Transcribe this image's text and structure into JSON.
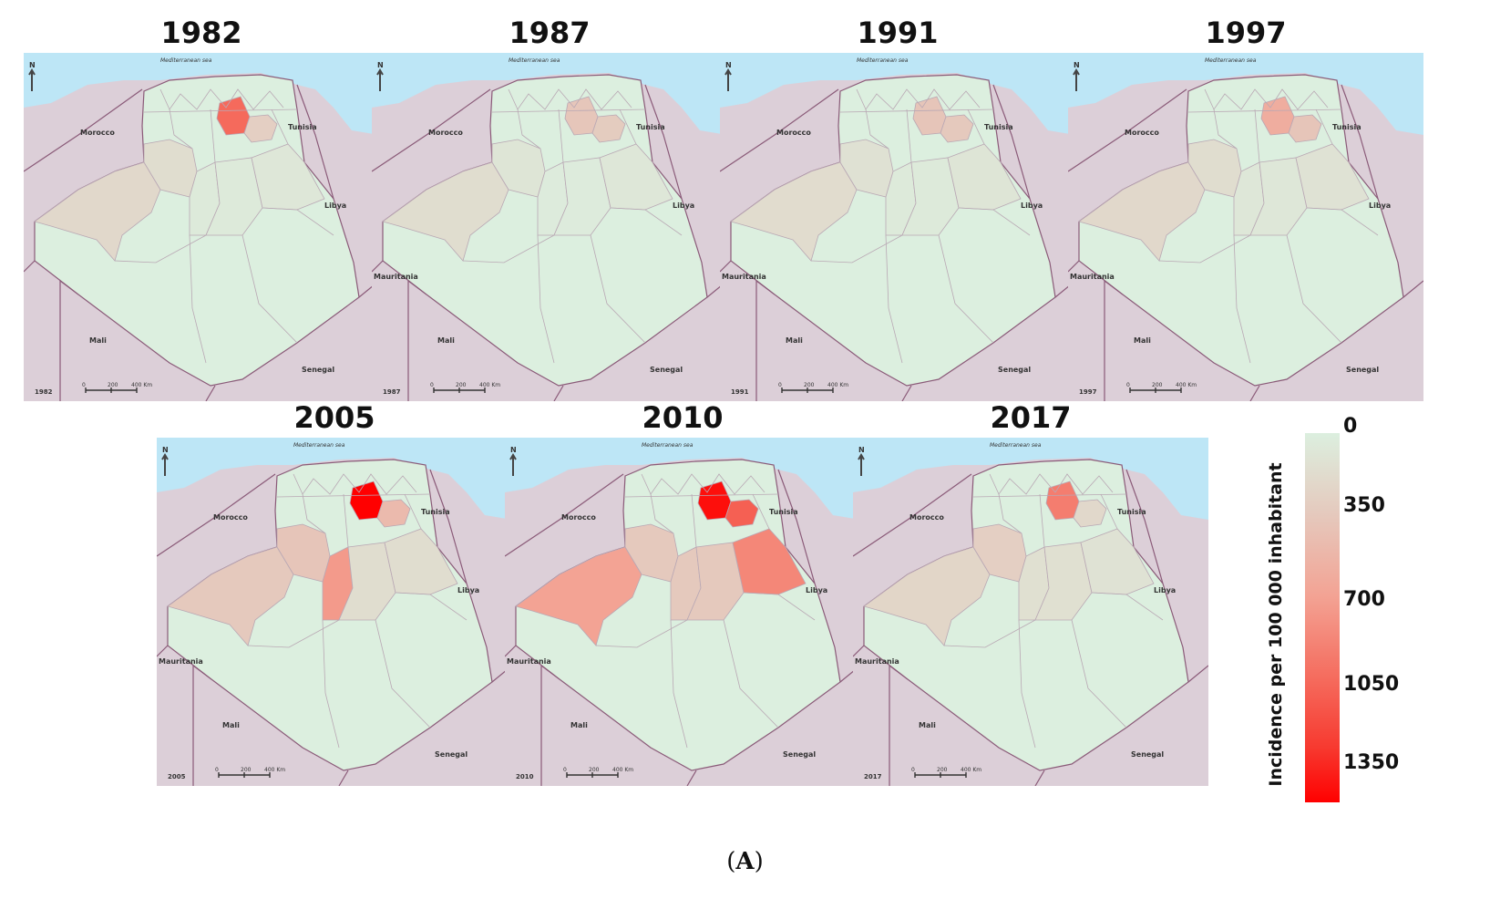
{
  "figure": {
    "caption_open": "(",
    "caption_letter": "A",
    "caption_close": ")"
  },
  "map_labels": {
    "sea": "Mediterranean sea",
    "north": "N",
    "morocco": "Morocco",
    "tunisia": "Tunisia",
    "libya": "Libya",
    "mauritania": "Mauritania",
    "mali": "Mali",
    "senegal": "Senegal",
    "scale_0": "0",
    "scale_200": "200",
    "scale_400": "400 Km"
  },
  "legend": {
    "title": "Incidence per 100 000 inhabitant",
    "ticks": [
      "0",
      "350",
      "700",
      "1050",
      "1350"
    ],
    "color_low": "#dcefdf",
    "color_high": "#ff0000"
  },
  "colors": {
    "sea": "#bde6f6",
    "neighbors": "#dccfd8",
    "base": "#dcefdf",
    "border": "#8a5a78"
  },
  "panels": [
    {
      "year": "1982",
      "incidence": {
        "biskra": 900,
        "batna": 250,
        "nw": 140,
        "adrar": 180,
        "eloued": 60,
        "ouargla": 40,
        "ghardaia": 40
      }
    },
    {
      "year": "1987",
      "incidence": {
        "biskra": 320,
        "batna": 280,
        "nw": 80,
        "adrar": 140,
        "eloued": 60,
        "ouargla": 30,
        "ghardaia": 30
      }
    },
    {
      "year": "1991",
      "incidence": {
        "biskra": 330,
        "batna": 300,
        "nw": 110,
        "adrar": 150,
        "eloued": 80,
        "ouargla": 40,
        "ghardaia": 40
      }
    },
    {
      "year": "1997",
      "incidence": {
        "biskra": 520,
        "batna": 330,
        "nw": 140,
        "adrar": 180,
        "eloued": 100,
        "ouargla": 60,
        "ghardaia": 60
      }
    },
    {
      "year": "2005",
      "incidence": {
        "biskra": 1350,
        "batna": 420,
        "nw": 330,
        "adrar": 300,
        "eloued": 140,
        "ouargla": 140,
        "ghardaia": 650
      }
    },
    {
      "year": "2010",
      "incidence": {
        "biskra": 1300,
        "batna": 950,
        "nw": 300,
        "adrar": 600,
        "eloued": 750,
        "ouargla": 300,
        "ghardaia": 300
      }
    },
    {
      "year": "2017",
      "incidence": {
        "biskra": 800,
        "batna": 180,
        "nw": 250,
        "adrar": 200,
        "eloued": 100,
        "ouargla": 120,
        "ghardaia": 120
      }
    }
  ]
}
